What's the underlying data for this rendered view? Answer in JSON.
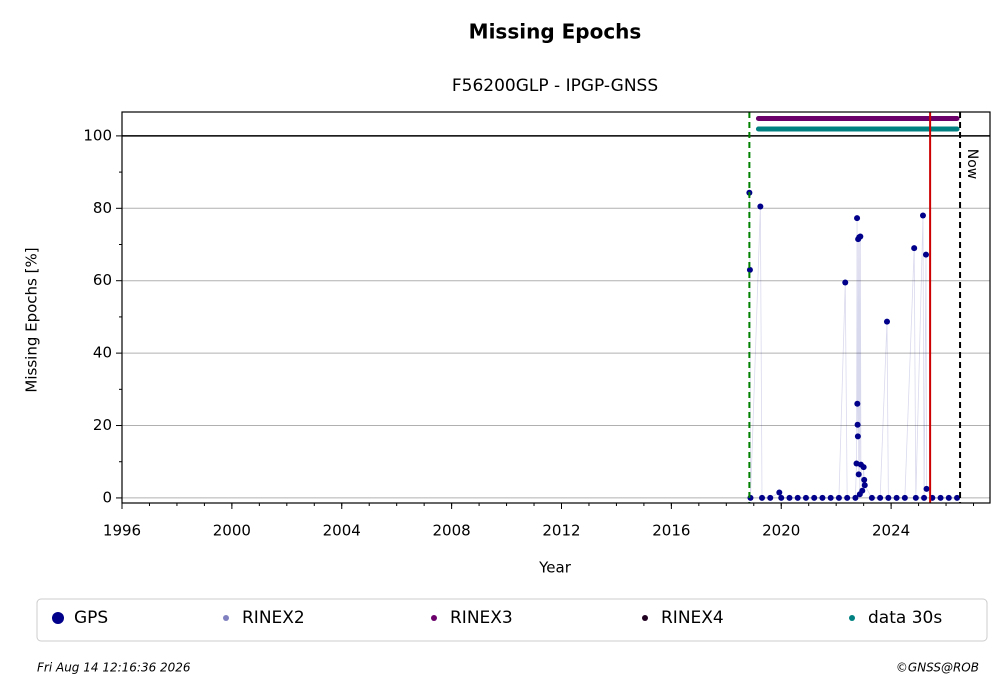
{
  "chart_data": {
    "type": "scatter",
    "title": "Missing Epochs",
    "subtitle": "F56200GLP - IPGP-GNSS",
    "x_label": "Year",
    "y_label": "Missing Epochs [%]",
    "xlim": [
      1996,
      2027.6
    ],
    "ylim": [
      -1.4,
      106.6
    ],
    "xticks": [
      1996,
      2000,
      2004,
      2008,
      2012,
      2016,
      2020,
      2024
    ],
    "yticks": [
      0,
      20,
      40,
      60,
      80,
      100
    ],
    "grid": true,
    "hline": 100,
    "vlines": [
      {
        "x": 2018.84,
        "color": "#008000",
        "style": "dashed"
      },
      {
        "x": 2025.42,
        "color": "#cc0000",
        "style": "solid"
      },
      {
        "x": 2026.51,
        "color": "#000000",
        "style": "dashed",
        "label": "Now"
      }
    ],
    "series": [
      {
        "name": "GPS",
        "color": "#00008b",
        "x": [
          2018.84,
          2018.86,
          2018.88,
          2019.24,
          2019.3,
          2019.6,
          2019.93,
          2020.0,
          2020.3,
          2020.6,
          2020.9,
          2021.2,
          2021.5,
          2021.8,
          2022.1,
          2022.33,
          2022.4,
          2022.7,
          2022.74,
          2022.76,
          2022.77,
          2022.78,
          2022.79,
          2022.8,
          2022.82,
          2022.84,
          2022.86,
          2022.88,
          2022.9,
          2022.95,
          2023.0,
          2023.02,
          2023.04,
          2023.3,
          2023.6,
          2023.85,
          2023.9,
          2024.2,
          2024.5,
          2024.84,
          2024.9,
          2025.16,
          2025.2,
          2025.27,
          2025.29,
          2025.5,
          2025.8,
          2026.1,
          2026.4
        ],
        "values": [
          84.3,
          63,
          0,
          80.5,
          0,
          0,
          1.5,
          0,
          0,
          0,
          0,
          0,
          0,
          0,
          0,
          59.5,
          0,
          0,
          9.5,
          77.3,
          26,
          20.2,
          17,
          71.5,
          6.5,
          72,
          1,
          72.2,
          9.2,
          2,
          8.5,
          5,
          3.5,
          0,
          0,
          48.7,
          0,
          0,
          0,
          69,
          0,
          78,
          0,
          67.2,
          2.5,
          0,
          0,
          0,
          0
        ]
      },
      {
        "name": "RINEX2",
        "color": "#8080c0",
        "x": [],
        "values": []
      },
      {
        "name": "RINEX3",
        "color": "#6b006b",
        "x": [
          2018.84,
          2019.0,
          2019.17,
          2026.4
        ],
        "values": [
          104.8,
          null,
          104.8,
          104.8
        ]
      },
      {
        "name": "RINEX4",
        "color": "#200020",
        "x": [],
        "values": []
      },
      {
        "name": "data 30s",
        "color": "#008080",
        "x": [
          2018.84,
          2019.0,
          2019.17,
          2026.4
        ],
        "values": [
          101.9,
          null,
          101.9,
          101.9
        ]
      }
    ]
  },
  "footer": {
    "timestamp": "Fri Aug 14 12:16:36 2026",
    "credit": "©GNSS@ROB"
  }
}
